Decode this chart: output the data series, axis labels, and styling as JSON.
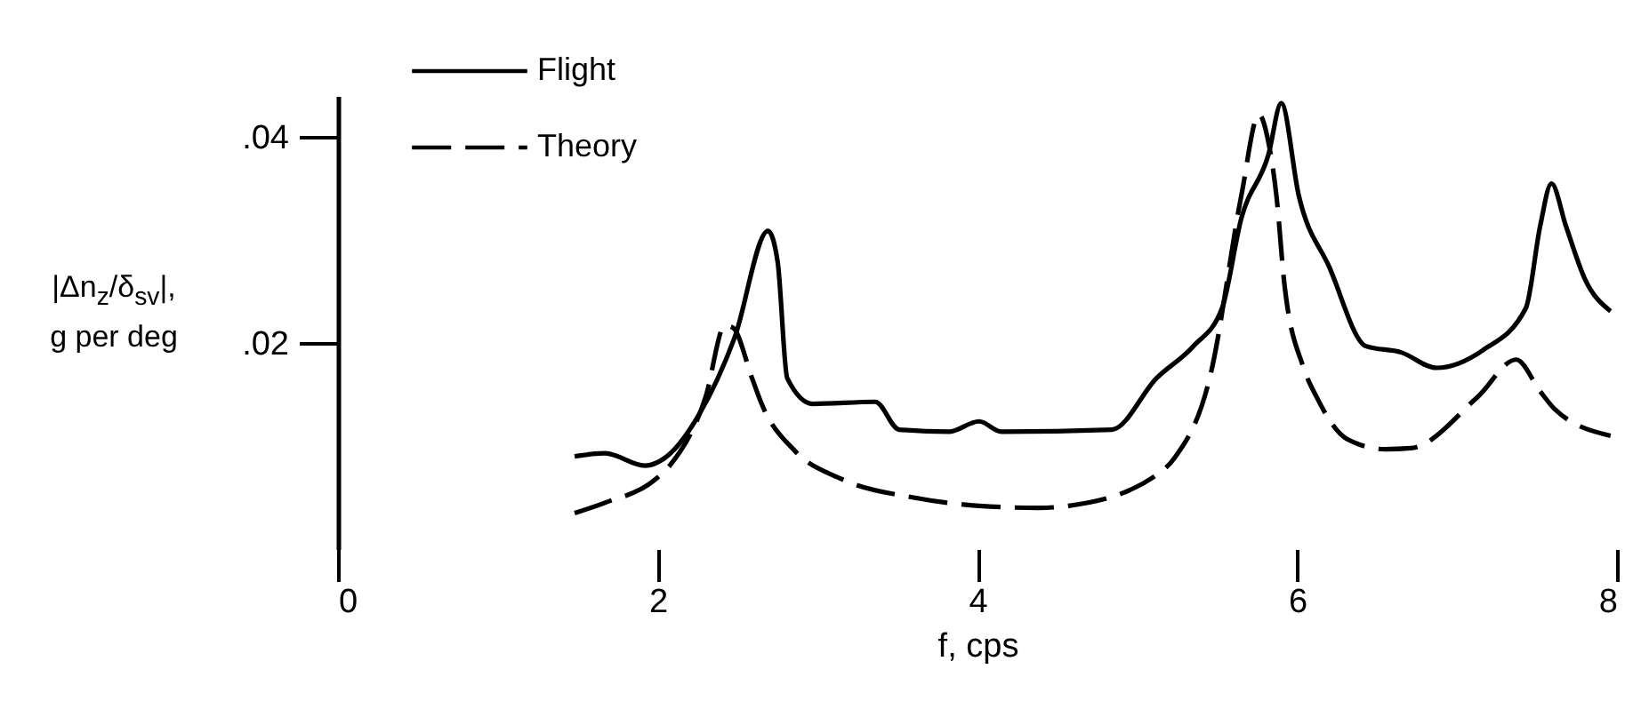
{
  "chart_data": {
    "type": "line",
    "xlabel": "f, cps",
    "ylabel": "|Δn$_{z}$/δ$_{sv}$|, g per deg",
    "xlim": [
      0,
      8
    ],
    "ylim": [
      0,
      0.044
    ],
    "xticks": [
      0,
      2,
      4,
      6,
      8
    ],
    "yticks": [
      {
        "value": 0.02,
        "label": ".02"
      },
      {
        "value": 0.04,
        "label": ".04"
      }
    ],
    "grid": false,
    "legend": "top left",
    "marker": "none",
    "series": [
      {
        "name": "Flight",
        "color": "#000000",
        "line_style": "solid",
        "x": [
          1.48,
          1.67,
          1.92,
          2.04,
          2.26,
          2.48,
          2.69,
          2.75,
          2.81,
          2.97,
          3.36,
          3.51,
          3.82,
          4.01,
          4.15,
          4.84,
          5.12,
          5.35,
          5.53,
          5.65,
          5.82,
          5.9,
          6.01,
          6.2,
          6.43,
          6.65,
          6.87,
          7.16,
          7.43,
          7.52,
          7.59,
          7.68,
          7.8,
          7.96
        ],
        "values": [
          0.009,
          0.0093,
          0.0081,
          0.0088,
          0.0131,
          0.0205,
          0.0309,
          0.0279,
          0.0166,
          0.0141,
          0.0143,
          0.0116,
          0.0114,
          0.0124,
          0.0114,
          0.0116,
          0.0166,
          0.0197,
          0.0234,
          0.0321,
          0.0383,
          0.0433,
          0.0343,
          0.0274,
          0.0197,
          0.0191,
          0.0176,
          0.0193,
          0.0234,
          0.0314,
          0.0355,
          0.0314,
          0.0262,
          0.0231
        ]
      },
      {
        "name": "Theory",
        "color": "#000000",
        "line_style": "dashed",
        "x": [
          1.48,
          1.67,
          1.98,
          2.08,
          2.3,
          2.42,
          2.47,
          2.59,
          2.65,
          2.86,
          3.15,
          3.6,
          4.01,
          4.38,
          4.57,
          5.12,
          5.23,
          5.46,
          5.65,
          5.76,
          5.82,
          5.87,
          5.92,
          6.04,
          6.12,
          6.31,
          6.55,
          6.71,
          7.13,
          7.37,
          7.52,
          7.61,
          7.96
        ],
        "values": [
          0.0035,
          0.0045,
          0.0067,
          0.0082,
          0.0148,
          0.0217,
          0.0215,
          0.0166,
          0.0141,
          0.0095,
          0.0068,
          0.005,
          0.0042,
          0.004,
          0.0042,
          0.0072,
          0.0088,
          0.0171,
          0.0343,
          0.0422,
          0.0395,
          0.0343,
          0.0257,
          0.0176,
          0.0148,
          0.0107,
          0.0097,
          0.0098,
          0.0148,
          0.0184,
          0.0153,
          0.0136,
          0.011
        ]
      }
    ]
  }
}
